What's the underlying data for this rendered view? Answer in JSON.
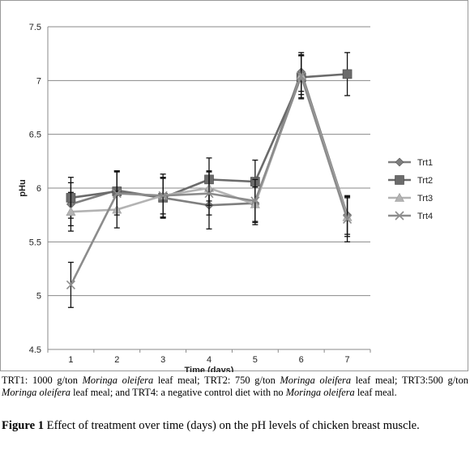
{
  "chart_data": {
    "type": "line",
    "title": "",
    "xlabel": "Time (days)",
    "ylabel": "pHu",
    "categories": [
      "1",
      "2",
      "3",
      "4",
      "5",
      "6",
      "7"
    ],
    "ylim": [
      4.5,
      7.5
    ],
    "yticks": [
      "4.5",
      "5",
      "5.5",
      "6",
      "6.5",
      "7",
      "7.5"
    ],
    "grid": "horizontal",
    "legend_position": "right",
    "series": [
      {
        "name": "Trt1",
        "marker": "diamond",
        "color": "#7f7f7f",
        "values": [
          5.85,
          5.98,
          5.91,
          5.84,
          5.86,
          7.08,
          5.75
        ],
        "err": [
          0.2,
          0.18,
          0.18,
          0.22,
          0.2,
          0.18,
          0.18
        ]
      },
      {
        "name": "Trt2",
        "marker": "square",
        "color": "#6b6b6b",
        "values": [
          5.91,
          5.97,
          5.91,
          6.08,
          6.06,
          7.03,
          7.06
        ],
        "err": [
          0.19,
          0.19,
          0.19,
          0.2,
          0.2,
          0.2,
          0.2
        ]
      },
      {
        "name": "Trt3",
        "marker": "triangle",
        "color": "#b3b3b3",
        "values": [
          5.78,
          5.8,
          5.93,
          6.0,
          5.85,
          7.05,
          5.73
        ],
        "err": [
          0.18,
          0.17,
          0.17,
          0.16,
          0.16,
          0.18,
          0.18
        ]
      },
      {
        "name": "Trt4",
        "marker": "x",
        "color": "#8c8c8c",
        "values": [
          5.1,
          5.95,
          5.93,
          5.95,
          5.88,
          7.04,
          5.71
        ],
        "err": [
          0.21,
          0.2,
          0.2,
          0.2,
          0.2,
          0.2,
          0.21
        ]
      }
    ]
  },
  "caption": {
    "line1_a": "TRT1: 1000 g/ton ",
    "line1_b": "Moringa oleifera",
    "line1_c": " leaf meal; TRT2: 750 g/ton ",
    "line1_d": "Moringa oleifera",
    "line1_e": " leaf meal;",
    "line2_a": "TRT3:500 g/ton ",
    "line2_b": "Moringa oleifera",
    "line2_c": " leaf meal; and TRT4: a negative control diet with no ",
    "line2_d": "Moringa",
    "line3_a": "oleifera",
    "line3_b": " leaf meal."
  },
  "figure": {
    "label": "Figure 1",
    "text": " Effect of treatment over time (days) on the pH levels of chicken breast muscle."
  }
}
